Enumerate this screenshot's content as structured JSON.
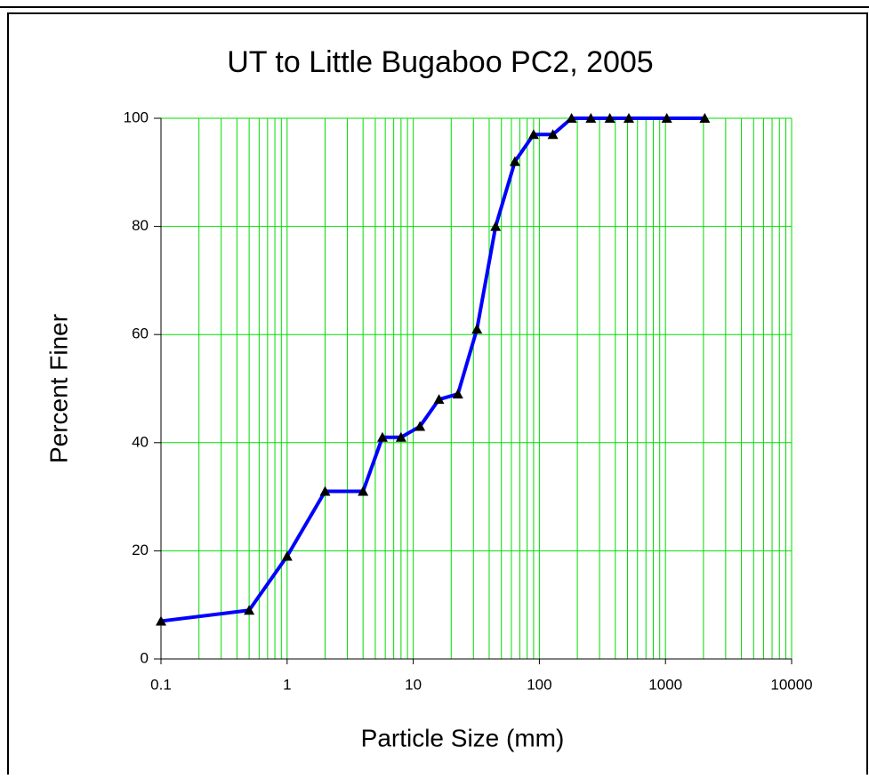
{
  "chart_data": {
    "type": "line",
    "title": "UT to Little Bugaboo PC2, 2005",
    "x_label": "Particle Size (mm)",
    "y_label": "Percent Finer",
    "x": [
      0.1,
      0.5,
      1,
      2,
      4,
      5.7,
      8,
      11.3,
      16,
      22.6,
      32,
      45,
      64,
      90,
      128,
      180,
      256,
      362,
      512,
      1024,
      2048
    ],
    "series": [
      {
        "name": "Percent Finer",
        "color": "#0000ff",
        "marker_color": "#000000",
        "values": [
          7,
          9,
          19,
          31,
          31,
          41,
          41,
          43,
          48,
          49,
          61,
          80,
          92,
          97,
          97,
          100,
          100,
          100,
          100,
          100,
          100
        ]
      }
    ],
    "xscale": "log",
    "xlim": [
      0.1,
      10000
    ],
    "xticks": [
      0.1,
      1,
      10,
      100,
      1000,
      10000
    ],
    "xminorticks": [
      0.2,
      0.3,
      0.4,
      0.5,
      0.6,
      0.7,
      0.8,
      0.9,
      2,
      3,
      4,
      5,
      6,
      7,
      8,
      9,
      20,
      30,
      40,
      50,
      60,
      70,
      80,
      90,
      200,
      300,
      400,
      500,
      600,
      700,
      800,
      900,
      2000,
      3000,
      4000,
      5000,
      6000,
      7000,
      8000,
      9000
    ],
    "ylim": [
      0,
      100
    ],
    "yticks": [
      0,
      20,
      40,
      60,
      80,
      100
    ],
    "grid": true,
    "grid_color": "#00dd00"
  }
}
